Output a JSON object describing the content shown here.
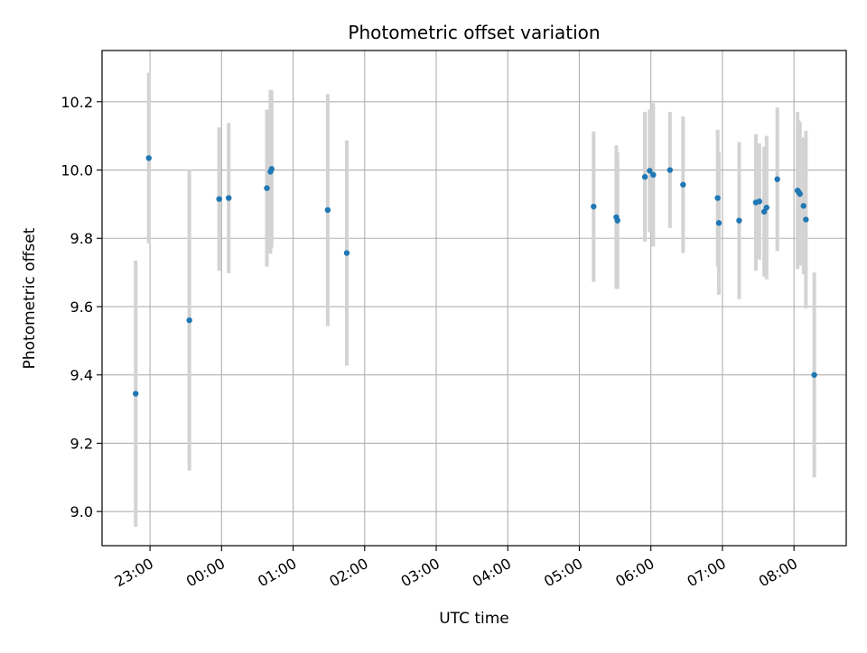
{
  "chart_data": {
    "type": "scatter",
    "title": "Photometric offset variation",
    "xlabel": "UTC time",
    "ylabel": "Photometric offset",
    "xlim_hours": [
      -1.67,
      8.73
    ],
    "ylim": [
      8.9,
      10.35
    ],
    "x_ticks": [
      "23:00",
      "00:00",
      "01:00",
      "02:00",
      "03:00",
      "04:00",
      "05:00",
      "06:00",
      "07:00",
      "08:00"
    ],
    "y_ticks": [
      "9.0",
      "9.2",
      "9.4",
      "9.6",
      "9.8",
      "10.0",
      "10.2"
    ],
    "grid": true,
    "colors": {
      "marker": "#1f77b4",
      "errorbar": "#d3d3d3",
      "grid": "#b0b0b0"
    },
    "series": [
      {
        "points": [
          {
            "t": "22:48",
            "y": 9.345,
            "err": 0.39
          },
          {
            "t": "22:59",
            "y": 10.035,
            "err": 0.25
          },
          {
            "t": "23:33",
            "y": 9.56,
            "err": 0.44
          },
          {
            "t": "23:58",
            "y": 9.915,
            "err": 0.21
          },
          {
            "t": "00:06",
            "y": 9.918,
            "err": 0.22
          },
          {
            "t": "00:38",
            "y": 9.947,
            "err": 0.23
          },
          {
            "t": "00:41",
            "y": 9.995,
            "err": 0.24
          },
          {
            "t": "00:42",
            "y": 10.003,
            "err": 0.23
          },
          {
            "t": "01:29",
            "y": 9.883,
            "err": 0.34
          },
          {
            "t": "01:45",
            "y": 9.757,
            "err": 0.33
          },
          {
            "t": "05:12",
            "y": 9.893,
            "err": 0.22
          },
          {
            "t": "05:31",
            "y": 9.862,
            "err": 0.21
          },
          {
            "t": "05:32",
            "y": 9.852,
            "err": 0.2
          },
          {
            "t": "05:55",
            "y": 9.98,
            "err": 0.19
          },
          {
            "t": "05:59",
            "y": 9.998,
            "err": 0.18
          },
          {
            "t": "06:02",
            "y": 9.986,
            "err": 0.21
          },
          {
            "t": "06:16",
            "y": 10.0,
            "err": 0.17
          },
          {
            "t": "06:27",
            "y": 9.957,
            "err": 0.2
          },
          {
            "t": "06:56",
            "y": 9.918,
            "err": 0.2
          },
          {
            "t": "06:57",
            "y": 9.845,
            "err": 0.21
          },
          {
            "t": "07:14",
            "y": 9.852,
            "err": 0.23
          },
          {
            "t": "07:28",
            "y": 9.905,
            "err": 0.2
          },
          {
            "t": "07:31",
            "y": 9.908,
            "err": 0.17
          },
          {
            "t": "07:35",
            "y": 9.878,
            "err": 0.19
          },
          {
            "t": "07:37",
            "y": 9.89,
            "err": 0.21
          },
          {
            "t": "07:46",
            "y": 9.973,
            "err": 0.21
          },
          {
            "t": "08:03",
            "y": 9.94,
            "err": 0.23
          },
          {
            "t": "08:04",
            "y": 9.935,
            "err": 0.21
          },
          {
            "t": "08:05",
            "y": 9.93,
            "err": 0.21
          },
          {
            "t": "08:08",
            "y": 9.895,
            "err": 0.2
          },
          {
            "t": "08:10",
            "y": 9.855,
            "err": 0.26
          },
          {
            "t": "08:17",
            "y": 9.4,
            "err": 0.3
          }
        ]
      }
    ]
  }
}
